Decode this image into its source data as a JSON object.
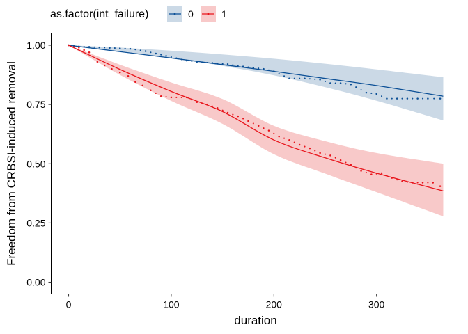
{
  "chart_data": {
    "type": "line",
    "title": "",
    "xlabel": "duration",
    "ylabel": "Freedom from CRBSI-induced removal",
    "xlim": [
      -17,
      383
    ],
    "ylim": [
      -0.05,
      1.05
    ],
    "x_ticks": [
      0,
      100,
      200,
      300
    ],
    "y_ticks": [
      0,
      0.25,
      0.5,
      0.75,
      1.0
    ],
    "y_tick_labels": [
      "0.00",
      "0.25",
      "0.50",
      "0.75",
      "1.00"
    ],
    "grid": false,
    "legend": {
      "title": "as.factor(int_failure)",
      "position": "top-left",
      "entries": [
        "0",
        "1"
      ]
    },
    "series": [
      {
        "name": "0",
        "color": "#0B4F96",
        "band_color": "#CBD9E6",
        "fit": {
          "x": [
            0,
            50,
            100,
            150,
            200,
            250,
            300,
            365
          ],
          "y": [
            1.0,
            0.973,
            0.946,
            0.918,
            0.89,
            0.86,
            0.83,
            0.785
          ]
        },
        "band_lower": {
          "x": [
            0,
            50,
            100,
            150,
            200,
            250,
            300,
            365
          ],
          "y": [
            1.0,
            0.975,
            0.947,
            0.913,
            0.873,
            0.823,
            0.766,
            0.683
          ]
        },
        "band_upper": {
          "x": [
            0,
            50,
            100,
            150,
            200,
            250,
            300,
            365
          ],
          "y": [
            1.0,
            0.99,
            0.977,
            0.961,
            0.943,
            0.922,
            0.898,
            0.865
          ]
        },
        "step_survival": {
          "x": [
            0,
            5,
            10,
            20,
            30,
            40,
            50,
            60,
            75,
            85,
            95,
            105,
            115,
            125,
            140,
            155,
            170,
            180,
            190,
            200,
            215,
            230,
            245,
            255,
            265,
            275,
            290,
            300,
            310,
            320,
            330,
            340,
            350,
            362
          ],
          "y": [
            1.0,
            0.997,
            0.995,
            0.993,
            0.991,
            0.989,
            0.987,
            0.985,
            0.975,
            0.965,
            0.955,
            0.945,
            0.935,
            0.93,
            0.925,
            0.92,
            0.91,
            0.905,
            0.9,
            0.89,
            0.86,
            0.86,
            0.855,
            0.84,
            0.84,
            0.835,
            0.8,
            0.795,
            0.775,
            0.775,
            0.775,
            0.775,
            0.775,
            0.775
          ]
        }
      },
      {
        "name": "1",
        "color": "#E8141B",
        "band_color": "#F8C9C9",
        "fit": {
          "x": [
            0,
            50,
            100,
            150,
            200,
            250,
            300,
            365
          ],
          "y": [
            1.0,
            0.898,
            0.805,
            0.72,
            0.6,
            0.525,
            0.46,
            0.385
          ]
        },
        "band_lower": {
          "x": [
            0,
            50,
            100,
            150,
            200,
            250,
            300,
            365
          ],
          "y": [
            1.0,
            0.875,
            0.765,
            0.668,
            0.54,
            0.458,
            0.38,
            0.278
          ]
        },
        "band_upper": {
          "x": [
            0,
            50,
            100,
            150,
            200,
            250,
            300,
            365
          ],
          "y": [
            1.0,
            0.918,
            0.843,
            0.773,
            0.66,
            0.595,
            0.545,
            0.5
          ]
        },
        "step_survival": {
          "x": [
            0,
            5,
            10,
            15,
            20,
            28,
            35,
            42,
            50,
            58,
            65,
            72,
            80,
            90,
            100,
            115,
            125,
            135,
            145,
            155,
            165,
            175,
            185,
            195,
            205,
            215,
            225,
            235,
            245,
            255,
            265,
            275,
            285,
            295,
            305,
            315,
            325,
            335,
            345,
            355,
            362
          ],
          "y": [
            1.0,
            0.995,
            0.99,
            0.98,
            0.97,
            0.93,
            0.915,
            0.9,
            0.885,
            0.87,
            0.845,
            0.83,
            0.81,
            0.785,
            0.78,
            0.78,
            0.76,
            0.75,
            0.735,
            0.715,
            0.7,
            0.68,
            0.66,
            0.64,
            0.615,
            0.6,
            0.58,
            0.565,
            0.545,
            0.535,
            0.515,
            0.495,
            0.47,
            0.455,
            0.46,
            0.44,
            0.425,
            0.42,
            0.42,
            0.42,
            0.405
          ]
        }
      }
    ]
  }
}
